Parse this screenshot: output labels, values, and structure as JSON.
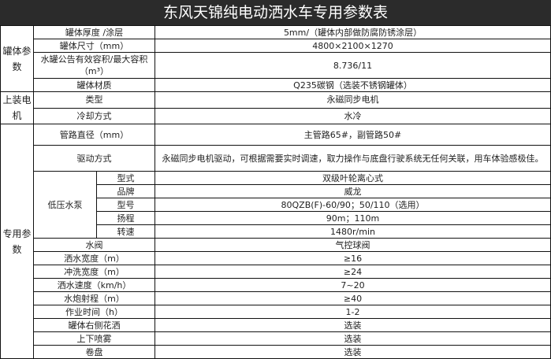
{
  "title": "东风天锦纯电动洒水车专用参数表",
  "tank": {
    "label": "罐体参数",
    "rows": [
      {
        "param": "罐体厚度 /涂层",
        "value": "5mm/（罐体内部做防腐防锈涂层）"
      },
      {
        "param": "罐体尺寸（mm）",
        "value": "4800×2100×1270"
      },
      {
        "param": "水罐公告有效容积/最大容积（m³）",
        "value": "8.736/11"
      },
      {
        "param": "罐体材质",
        "value": "Q235碳钢（选装不锈钢罐体）"
      }
    ]
  },
  "motor": {
    "label": "上装电机",
    "rows": [
      {
        "param": "类型",
        "value": "永磁同步电机"
      },
      {
        "param": "冷却方式",
        "value": "水冷"
      }
    ]
  },
  "special": {
    "label": "专用参数",
    "rows": [
      {
        "param": "管路直径（mm）",
        "value": "主管路65#，副管路50#"
      },
      {
        "param": "驱动方式",
        "value": "永磁同步电机驱动，可根据需要实时调速，取力操作与底盘行驶系统无任何关联，用车体验感极佳。"
      }
    ],
    "pump": {
      "label": "低压水泵",
      "rows": [
        {
          "param": "型式",
          "value": "双级叶轮离心式"
        },
        {
          "param": "品牌",
          "value": "威龙"
        },
        {
          "param": "型号",
          "value": "80QZB(F)-60/90；50/110（选用）"
        },
        {
          "param": "扬程",
          "value": "90m；110m"
        },
        {
          "param": "转速",
          "value": "1480r/min"
        }
      ]
    },
    "rows2": [
      {
        "param": "水阀",
        "value": "气控球阀"
      },
      {
        "param": "洒水宽度（m）",
        "value": "≥16"
      },
      {
        "param": "冲洗宽度（m）",
        "value": "≥24"
      },
      {
        "param": "洒水速度（km/h）",
        "value": "7~20"
      },
      {
        "param": "水炮射程（m）",
        "value": "≥40"
      },
      {
        "param": "作业时间（h）",
        "value": "1-2"
      },
      {
        "param": "罐体右侧花洒",
        "value": "选装"
      },
      {
        "param": "上下喷雾",
        "value": "选装"
      },
      {
        "param": "卷盘",
        "value": "选装"
      }
    ]
  }
}
